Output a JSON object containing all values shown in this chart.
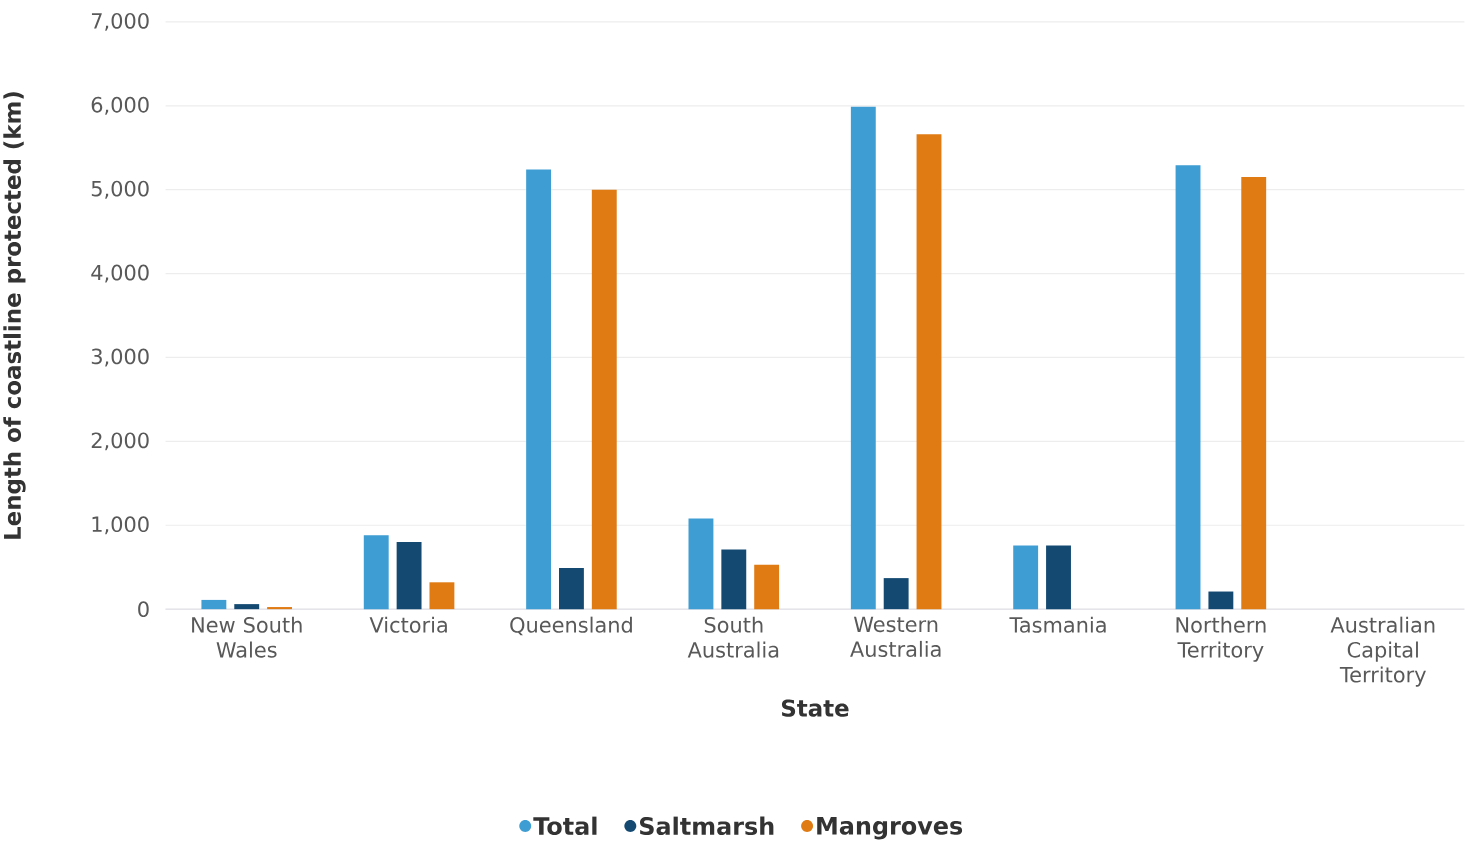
{
  "chart_data": {
    "type": "bar",
    "xlabel": "State",
    "ylabel": "Length of coastline protected (km)",
    "categories": [
      "New South Wales",
      "Victoria",
      "Queensland",
      "South Australia",
      "Western Australia",
      "Tasmania",
      "Northern Territory",
      "Australian Capital Territory"
    ],
    "series": [
      {
        "name": "Total",
        "color": "#3e9dd3",
        "values": [
          110,
          880,
          5240,
          1080,
          5990,
          760,
          5290,
          0
        ]
      },
      {
        "name": "Saltmarsh",
        "color": "#144a72",
        "values": [
          60,
          800,
          490,
          710,
          370,
          760,
          210,
          0
        ]
      },
      {
        "name": "Mangroves",
        "color": "#e07b13",
        "values": [
          25,
          320,
          5000,
          530,
          5660,
          0,
          5150,
          0
        ]
      }
    ],
    "ylim": [
      0,
      7000
    ],
    "yticks": [
      {
        "value": 0,
        "label": "0"
      },
      {
        "value": 1000,
        "label": "1,000"
      },
      {
        "value": 2000,
        "label": "2,000"
      },
      {
        "value": 3000,
        "label": "3,000"
      },
      {
        "value": 4000,
        "label": "4,000"
      },
      {
        "value": 5000,
        "label": "5,000"
      },
      {
        "value": 6000,
        "label": "6,000"
      },
      {
        "value": 7000,
        "label": "7,000"
      }
    ],
    "grid": "y",
    "legend": "bottom"
  }
}
